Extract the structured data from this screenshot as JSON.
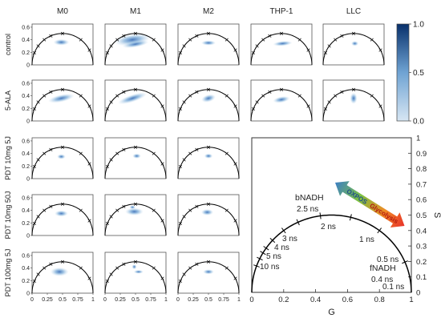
{
  "chart_data": {
    "type": "phasor",
    "columns": [
      "M0",
      "M1",
      "M2",
      "THP-1",
      "LLC"
    ],
    "rows": [
      "control",
      "5-ALA",
      "PDT 10mg 5J",
      "PDT 10mg 50J",
      "PDT 100mg 5J"
    ],
    "small_x_ticks": [
      "0",
      "0.25",
      "0.5",
      "0.75",
      "1"
    ],
    "small_y_ticks": [
      "0",
      "0.2",
      "0.4",
      "0.6"
    ],
    "xlim": [
      0,
      1
    ],
    "ylim": [
      0,
      0.65
    ],
    "panels": [
      [
        {
          "clusters": [
            {
              "g": 0.48,
              "s": 0.36,
              "rx": 0.13,
              "ry": 0.05,
              "rot": 0
            }
          ]
        },
        {
          "clusters": [
            {
              "g": 0.45,
              "s": 0.4,
              "rx": 0.3,
              "ry": 0.09,
              "rot": -8
            },
            {
              "g": 0.5,
              "s": 0.33,
              "rx": 0.22,
              "ry": 0.05,
              "rot": -10
            }
          ]
        },
        {
          "clusters": [
            {
              "g": 0.5,
              "s": 0.35,
              "rx": 0.12,
              "ry": 0.04,
              "rot": 0
            }
          ]
        },
        {
          "clusters": [
            {
              "g": 0.52,
              "s": 0.34,
              "rx": 0.16,
              "ry": 0.04,
              "rot": -5
            }
          ]
        },
        {
          "clusters": [
            {
              "g": 0.52,
              "s": 0.34,
              "rx": 0.06,
              "ry": 0.04,
              "rot": 0
            }
          ]
        }
      ],
      [
        {
          "clusters": [
            {
              "g": 0.48,
              "s": 0.36,
              "rx": 0.22,
              "ry": 0.06,
              "rot": -12
            }
          ]
        },
        {
          "clusters": [
            {
              "g": 0.45,
              "s": 0.36,
              "rx": 0.25,
              "ry": 0.06,
              "rot": -18
            }
          ]
        },
        {
          "clusters": [
            {
              "g": 0.5,
              "s": 0.36,
              "rx": 0.12,
              "ry": 0.06,
              "rot": -15
            }
          ]
        },
        {
          "clusters": [
            {
              "g": 0.5,
              "s": 0.34,
              "rx": 0.14,
              "ry": 0.05,
              "rot": -10
            }
          ]
        },
        {
          "clusters": [
            {
              "g": 0.5,
              "s": 0.36,
              "rx": 0.06,
              "ry": 0.09,
              "rot": 0
            }
          ]
        }
      ],
      [
        {
          "clusters": [
            {
              "g": 0.48,
              "s": 0.35,
              "rx": 0.07,
              "ry": 0.04,
              "rot": 0
            }
          ]
        },
        {
          "clusters": [
            {
              "g": 0.52,
              "s": 0.36,
              "rx": 0.07,
              "ry": 0.04,
              "rot": 0
            }
          ]
        },
        {
          "clusters": [
            {
              "g": 0.5,
              "s": 0.36,
              "rx": 0.07,
              "ry": 0.04,
              "rot": 0
            }
          ]
        }
      ],
      [
        {
          "clusters": [
            {
              "g": 0.48,
              "s": 0.35,
              "rx": 0.11,
              "ry": 0.05,
              "rot": 0
            }
          ]
        },
        {
          "clusters": [
            {
              "g": 0.48,
              "s": 0.38,
              "rx": 0.15,
              "ry": 0.06,
              "rot": 0
            },
            {
              "g": 0.45,
              "s": 0.45,
              "rx": 0.05,
              "ry": 0.03,
              "rot": 0
            }
          ]
        },
        {
          "clusters": [
            {
              "g": 0.48,
              "s": 0.37,
              "rx": 0.1,
              "ry": 0.05,
              "rot": 0
            }
          ]
        }
      ],
      [
        {
          "clusters": [
            {
              "g": 0.45,
              "s": 0.34,
              "rx": 0.15,
              "ry": 0.07,
              "rot": 0
            }
          ]
        },
        {
          "clusters": [
            {
              "g": 0.48,
              "s": 0.42,
              "rx": 0.04,
              "ry": 0.04,
              "rot": 0
            },
            {
              "g": 0.55,
              "s": 0.34,
              "rx": 0.08,
              "ry": 0.03,
              "rot": 0
            }
          ]
        },
        {
          "clusters": [
            {
              "g": 0.5,
              "s": 0.34,
              "rx": 0.09,
              "ry": 0.04,
              "rot": 0
            }
          ]
        }
      ]
    ],
    "colorbar": {
      "ticks": [
        "0.0",
        "0.5",
        "1.0"
      ],
      "range": [
        0,
        1
      ],
      "low_color": "#d7e6f3",
      "high_color": "#08306b"
    },
    "reference_plot": {
      "xlabel": "G",
      "ylabel": "S",
      "x_ticks": [
        "0",
        "0.2",
        "0.4",
        "0.6",
        "0.8",
        "1"
      ],
      "y_ticks": [
        "0",
        "0.1",
        "0.2",
        "0.3",
        "0.4",
        "0.5",
        "0.6",
        "0.7",
        "0.8",
        "0.9",
        "1"
      ],
      "lifetime_labels": [
        "10 ns",
        "5 ns",
        "4 ns",
        "3 ns",
        "2.5 ns",
        "2 ns",
        "1 ns",
        "0.5 ns",
        "0.4 ns",
        "0.1 ns"
      ],
      "species_labels": [
        "bNADH",
        "fNADH"
      ],
      "arrow_labels": [
        "OXPOS",
        "Glycolysis"
      ],
      "arrow_colors": [
        "#3d7fc4",
        "#7cc242",
        "#f08a24",
        "#e8312a"
      ]
    }
  }
}
